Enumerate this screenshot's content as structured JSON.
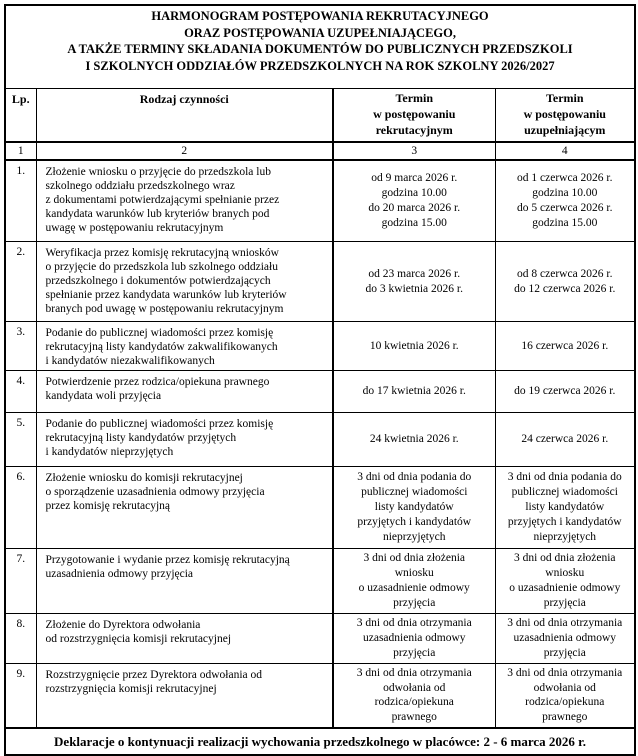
{
  "title": "HARMONOGRAM POSTĘPOWANIA REKRUTACYJNEGO\nORAZ POSTĘPOWANIA UZUPEŁNIAJĄCEGO,\nA TAKŻE TERMINY SKŁADANIA DOKUMENTÓW DO PUBLICZNYCH PRZEDSZKOLI\nI SZKOLNYCH ODDZIAŁÓW PRZEDSZKOLNYCH NA ROK SZKOLNY 2026/2027",
  "colors": {
    "background": "#ffffff",
    "text": "#000000",
    "border": "#000000"
  },
  "table": {
    "headers": {
      "lp": "Lp.",
      "activity": "Rodzaj czynności",
      "term_recruitment": "Termin\nw postępowaniu\nrekrutacyjnym",
      "term_supplementary": "Termin\nw postępowaniu\nuzupełniającym"
    },
    "column_numbers": [
      "1",
      "2",
      "3",
      "4"
    ],
    "rows": [
      {
        "lp": "1.",
        "activity": "Złożenie wniosku o przyjęcie do przedszkola lub\nszkolnego oddziału przedszkolnego wraz\nz dokumentami potwierdzającymi spełnianie przez\nkandydata warunków lub kryteriów branych pod\nuwagę w postępowaniu rekrutacyjnym",
        "term_recruitment": "od 9 marca 2026 r.\ngodzina 10.00\ndo 20 marca 2026 r.\ngodzina 15.00",
        "term_supplementary": "od 1 czerwca 2026 r.\ngodzina 10.00\ndo 5 czerwca 2026 r.\ngodzina 15.00"
      },
      {
        "lp": "2.",
        "activity": "Weryfikacja przez komisję rekrutacyjną wniosków\no przyjęcie do przedszkola lub szkolnego oddziału\nprzedszkolnego i dokumentów potwierdzających\nspełnianie przez kandydata warunków lub kryteriów\nbranych pod uwagę w postępowaniu rekrutacyjnym",
        "term_recruitment": "od 23 marca 2026 r.\ndo 3 kwietnia 2026 r.",
        "term_supplementary": "od 8 czerwca 2026 r.\ndo 12 czerwca 2026 r."
      },
      {
        "lp": "3.",
        "activity": "Podanie do publicznej wiadomości przez komisję\nrekrutacyjną listy kandydatów zakwalifikowanych\ni kandydatów niezakwalifikowanych",
        "term_recruitment": "10 kwietnia 2026 r.",
        "term_supplementary": "16 czerwca 2026 r."
      },
      {
        "lp": "4.",
        "activity": "Potwierdzenie przez rodzica/opiekuna prawnego\nkandydata woli przyjęcia",
        "term_recruitment": "do 17 kwietnia 2026 r.",
        "term_supplementary": "do 19 czerwca 2026 r."
      },
      {
        "lp": "5.",
        "activity": "Podanie do publicznej wiadomości przez komisję\nrekrutacyjną listy kandydatów przyjętych\ni kandydatów nieprzyjętych",
        "term_recruitment": "24 kwietnia 2026 r.",
        "term_supplementary": "24 czerwca 2026 r."
      },
      {
        "lp": "6.",
        "activity": "Złożenie wniosku do komisji rekrutacyjnej\no sporządzenie uzasadnienia odmowy przyjęcia\nprzez komisję rekrutacyjną",
        "term_recruitment": "3 dni od dnia podania do\npublicznej wiadomości\nlisty kandydatów\nprzyjętych i kandydatów\nnieprzyjętych",
        "term_supplementary": "3 dni od dnia podania do\npublicznej wiadomości\nlisty kandydatów\nprzyjętych i kandydatów\nnieprzyjętych"
      },
      {
        "lp": "7.",
        "activity": "Przygotowanie i wydanie przez komisję rekrutacyjną\nuzasadnienia odmowy przyjęcia",
        "term_recruitment": "3 dni od dnia złożenia\nwniosku\no uzasadnienie odmowy\nprzyjęcia",
        "term_supplementary": "3 dni od dnia złożenia\nwniosku\no uzasadnienie odmowy\nprzyjęcia"
      },
      {
        "lp": "8.",
        "activity": "Złożenie do Dyrektora odwołania\nod rozstrzygnięcia komisji rekrutacyjnej",
        "term_recruitment": "3 dni od dnia otrzymania\nuzasadnienia odmowy\nprzyjęcia",
        "term_supplementary": "3 dni od dnia otrzymania\nuzasadnienia odmowy\nprzyjęcia"
      },
      {
        "lp": "9.",
        "activity": "Rozstrzygnięcie przez Dyrektora odwołania od\nrozstrzygnięcia komisji rekrutacyjnej",
        "term_recruitment": "3 dni od dnia otrzymania\nodwołania od\nrodzica/opiekuna\nprawnego",
        "term_supplementary": "3 dni od dnia otrzymania\nodwołania od\nrodzica/opiekuna\nprawnego"
      }
    ]
  },
  "footer": {
    "text": "Deklaracje o kontynuacji realizacji wychowania przedszkolnego w placówce: 2 - 6 marca 2026 r."
  }
}
